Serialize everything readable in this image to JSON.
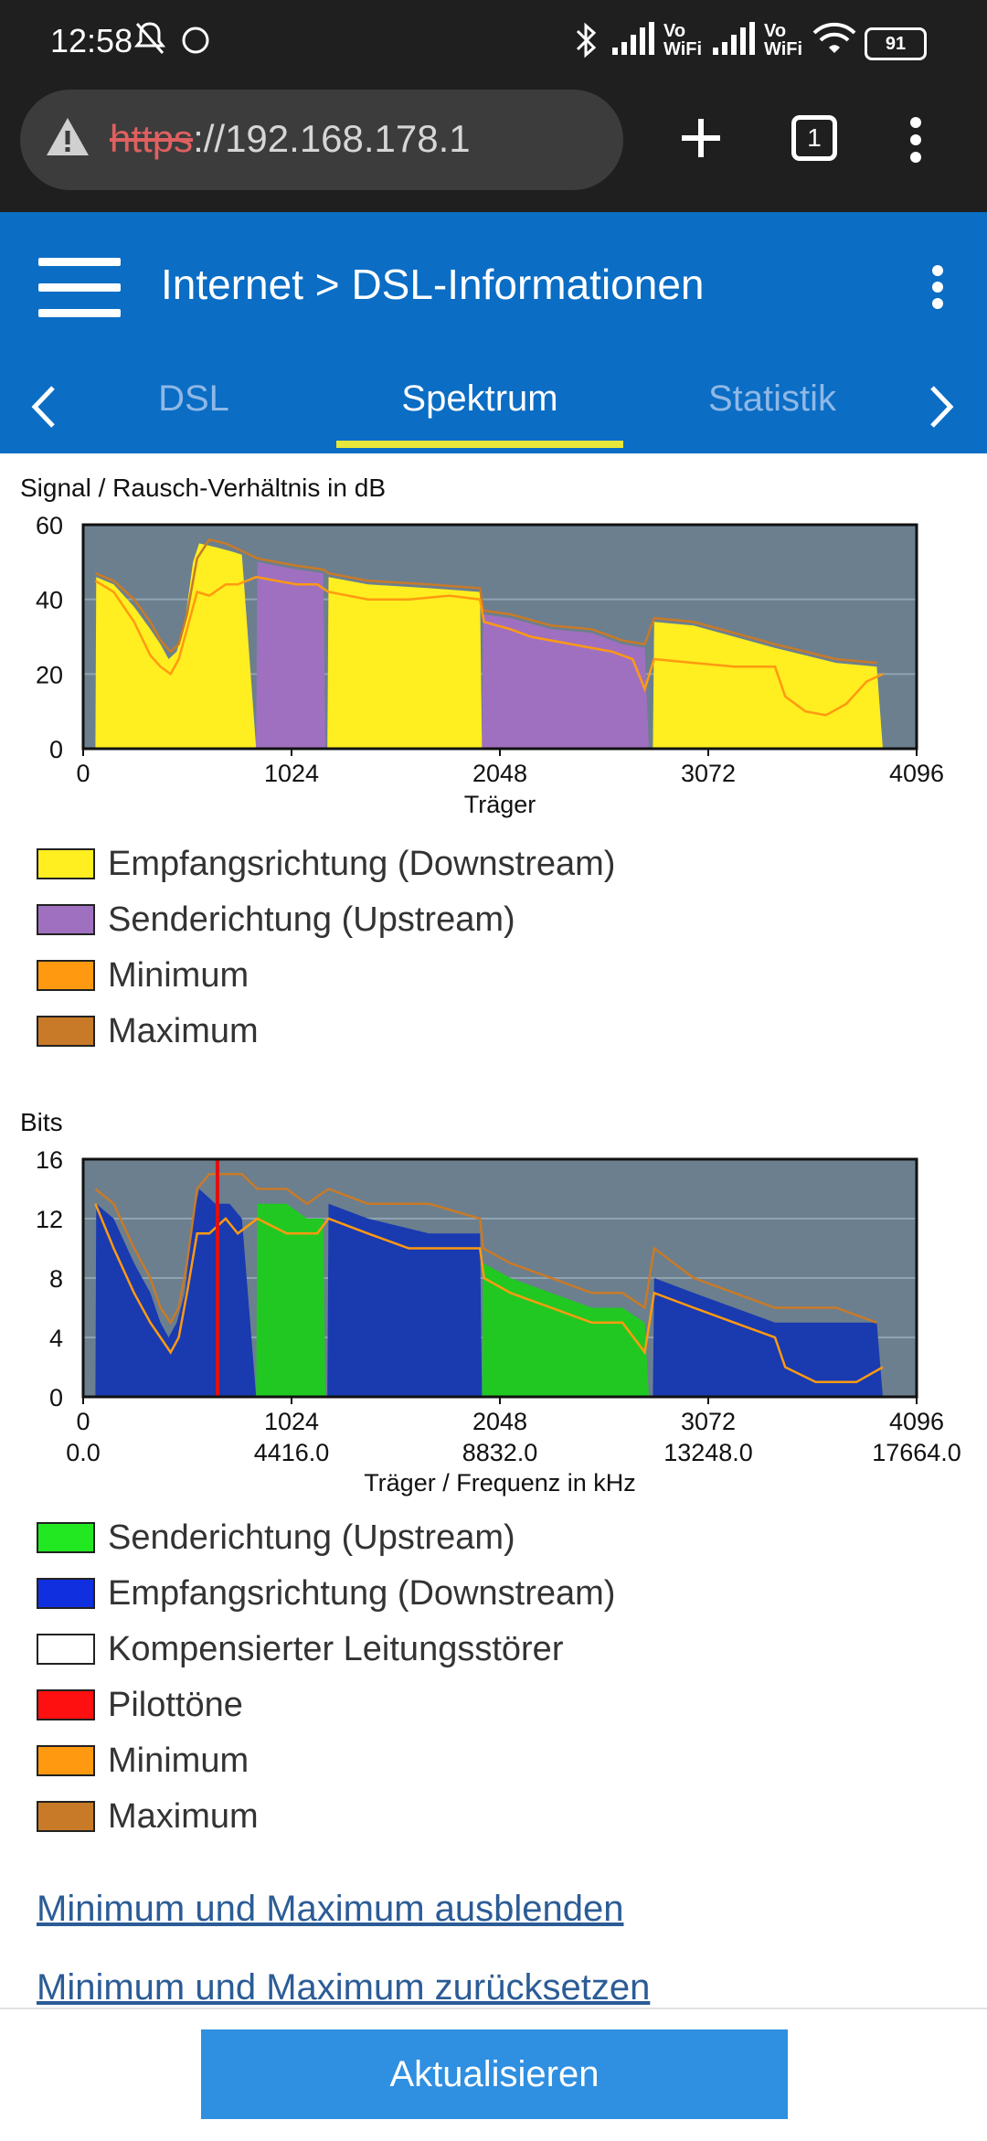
{
  "status_bar": {
    "time": "12:58",
    "battery": "91",
    "icons": [
      "mute-icon",
      "circle-icon",
      "bluetooth-icon",
      "signal-icon",
      "vowifi-icon",
      "signal-icon",
      "vowifi-icon",
      "wifi-icon",
      "battery-icon"
    ],
    "vowifi_top": "Vo",
    "vowifi_bottom": "WiFi"
  },
  "browser": {
    "url_scheme": "https",
    "url_rest": "://192.168.178.1",
    "tab_count": "1"
  },
  "header": {
    "crumb_parent": "Internet",
    "crumb_sep": ">",
    "crumb_current": "DSL-Informationen"
  },
  "tabs": [
    {
      "label": "DSL",
      "active": false
    },
    {
      "label": "Spektrum",
      "active": true
    },
    {
      "label": "Statistik",
      "active": false
    }
  ],
  "colors": {
    "accent": "#0b6dc4",
    "tab_indicator": "#e8e83a",
    "plot_bg": "#6b7f8f",
    "downstream_snr": "#ffee20",
    "upstream_snr": "#a070c0",
    "bits_upstream": "#22c822",
    "bits_downstream": "#1a3ab0",
    "pilot": "#e01010",
    "minimum": "#ff9a10",
    "maximum": "#c87a28",
    "link": "#2b5c96",
    "button": "#2f8fe0"
  },
  "chart_data": [
    {
      "type": "area",
      "title": "",
      "ylabel": "Signal / Rausch-Verhältnis in dB",
      "xlabel": "Träger",
      "xlim": [
        0,
        4096
      ],
      "ylim": [
        0,
        60
      ],
      "x_ticks": [
        0,
        1024,
        2048,
        3072,
        4096
      ],
      "y_ticks": [
        0,
        20,
        40,
        60
      ],
      "grid": true,
      "series": [
        {
          "name": "Empfangsrichtung (Downstream)",
          "role": "downstream",
          "points": [
            [
              0,
              0
            ],
            [
              60,
              0
            ],
            [
              64,
              46
            ],
            [
              150,
              44
            ],
            [
              250,
              38
            ],
            [
              330,
              32
            ],
            [
              380,
              28
            ],
            [
              420,
              24
            ],
            [
              460,
              26
            ],
            [
              500,
              34
            ],
            [
              540,
              50
            ],
            [
              570,
              55
            ],
            [
              650,
              54
            ],
            [
              720,
              53
            ],
            [
              780,
              52
            ],
            [
              850,
              0
            ],
            [
              1200,
              0
            ],
            [
              1206,
              46
            ],
            [
              1400,
              44
            ],
            [
              1700,
              43
            ],
            [
              1950,
              42
            ],
            [
              1960,
              0
            ],
            [
              2800,
              0
            ],
            [
              2806,
              34
            ],
            [
              3000,
              33
            ],
            [
              3200,
              30
            ],
            [
              3400,
              27
            ],
            [
              3550,
              25
            ],
            [
              3700,
              23
            ],
            [
              3900,
              22
            ],
            [
              3930,
              0
            ]
          ]
        },
        {
          "name": "Senderichtung (Upstream)",
          "role": "upstream",
          "points": [
            [
              0,
              0
            ],
            [
              850,
              0
            ],
            [
              856,
              50
            ],
            [
              950,
              49
            ],
            [
              1050,
              48
            ],
            [
              1180,
              47
            ],
            [
              1190,
              0
            ],
            [
              1960,
              0
            ],
            [
              1966,
              36
            ],
            [
              2100,
              35
            ],
            [
              2300,
              32
            ],
            [
              2500,
              31
            ],
            [
              2650,
              28
            ],
            [
              2760,
              27
            ],
            [
              2780,
              0
            ]
          ]
        }
      ],
      "minimum": [
        [
          60,
          45
        ],
        [
          150,
          42
        ],
        [
          250,
          34
        ],
        [
          330,
          25
        ],
        [
          380,
          22
        ],
        [
          430,
          20
        ],
        [
          470,
          24
        ],
        [
          510,
          32
        ],
        [
          560,
          42
        ],
        [
          620,
          41
        ],
        [
          700,
          44
        ],
        [
          760,
          44
        ],
        [
          850,
          46
        ],
        [
          950,
          45
        ],
        [
          1050,
          44
        ],
        [
          1150,
          44
        ],
        [
          1206,
          42
        ],
        [
          1400,
          40
        ],
        [
          1600,
          40
        ],
        [
          1800,
          41
        ],
        [
          1950,
          40
        ],
        [
          1970,
          34
        ],
        [
          2100,
          32
        ],
        [
          2200,
          30
        ],
        [
          2300,
          29
        ],
        [
          2400,
          28
        ],
        [
          2500,
          27
        ],
        [
          2600,
          26
        ],
        [
          2700,
          24
        ],
        [
          2760,
          16
        ],
        [
          2806,
          24
        ],
        [
          3000,
          23
        ],
        [
          3200,
          22
        ],
        [
          3400,
          22
        ],
        [
          3450,
          14
        ],
        [
          3550,
          10
        ],
        [
          3650,
          9
        ],
        [
          3750,
          12
        ],
        [
          3850,
          18
        ],
        [
          3930,
          20
        ]
      ],
      "maximum": [
        [
          60,
          47
        ],
        [
          150,
          45
        ],
        [
          250,
          40
        ],
        [
          330,
          34
        ],
        [
          380,
          29
        ],
        [
          430,
          26
        ],
        [
          470,
          28
        ],
        [
          510,
          36
        ],
        [
          560,
          51
        ],
        [
          620,
          56
        ],
        [
          700,
          55
        ],
        [
          780,
          53
        ],
        [
          856,
          51
        ],
        [
          950,
          50
        ],
        [
          1050,
          49
        ],
        [
          1180,
          48
        ],
        [
          1206,
          47
        ],
        [
          1400,
          45
        ],
        [
          1700,
          44
        ],
        [
          1950,
          43
        ],
        [
          1966,
          37
        ],
        [
          2100,
          36
        ],
        [
          2300,
          33
        ],
        [
          2500,
          32
        ],
        [
          2650,
          29
        ],
        [
          2760,
          28
        ],
        [
          2806,
          35
        ],
        [
          3000,
          34
        ],
        [
          3200,
          31
        ],
        [
          3400,
          28
        ],
        [
          3550,
          26
        ],
        [
          3700,
          24
        ],
        [
          3900,
          23
        ]
      ]
    },
    {
      "type": "area",
      "title": "",
      "ylabel": "Bits",
      "xlabel": "Träger / Frequenz in kHz",
      "xlim": [
        0,
        4096
      ],
      "ylim": [
        0,
        16
      ],
      "x_ticks": [
        0,
        1024,
        2048,
        3072,
        4096
      ],
      "x_tick_freqs": [
        "0.0",
        "4416.0",
        "8832.0",
        "13248.0",
        "17664.0"
      ],
      "y_ticks": [
        0,
        4,
        8,
        12,
        16
      ],
      "grid": true,
      "pilot_tone": 660,
      "series": [
        {
          "name": "Senderichtung (Upstream)",
          "role": "upstream",
          "points": [
            [
              0,
              0
            ],
            [
              850,
              0
            ],
            [
              856,
              13
            ],
            [
              1000,
              13
            ],
            [
              1100,
              12
            ],
            [
              1180,
              12
            ],
            [
              1190,
              0
            ],
            [
              1960,
              0
            ],
            [
              1966,
              9
            ],
            [
              2100,
              8
            ],
            [
              2300,
              7
            ],
            [
              2500,
              6
            ],
            [
              2650,
              6
            ],
            [
              2760,
              5
            ],
            [
              2780,
              0
            ]
          ]
        },
        {
          "name": "Empfangsrichtung (Downstream)",
          "role": "downstream",
          "points": [
            [
              0,
              0
            ],
            [
              60,
              0
            ],
            [
              64,
              13
            ],
            [
              150,
              12
            ],
            [
              250,
              9
            ],
            [
              330,
              7
            ],
            [
              380,
              5
            ],
            [
              420,
              4
            ],
            [
              460,
              5
            ],
            [
              500,
              7
            ],
            [
              540,
              12
            ],
            [
              570,
              14
            ],
            [
              650,
              13
            ],
            [
              720,
              13
            ],
            [
              780,
              12
            ],
            [
              850,
              0
            ],
            [
              1200,
              0
            ],
            [
              1206,
              13
            ],
            [
              1400,
              12
            ],
            [
              1700,
              11
            ],
            [
              1950,
              11
            ],
            [
              1960,
              0
            ],
            [
              2800,
              0
            ],
            [
              2806,
              8
            ],
            [
              3000,
              7
            ],
            [
              3200,
              6
            ],
            [
              3400,
              5
            ],
            [
              3550,
              5
            ],
            [
              3700,
              5
            ],
            [
              3900,
              5
            ],
            [
              3930,
              0
            ]
          ]
        },
        {
          "name": "Kompensierter Leitungsstörer",
          "role": "compensated",
          "points": []
        },
        {
          "name": "Pilottöne",
          "role": "pilot",
          "points": []
        }
      ],
      "minimum": [
        [
          60,
          13
        ],
        [
          150,
          10
        ],
        [
          250,
          7
        ],
        [
          330,
          5
        ],
        [
          380,
          4
        ],
        [
          430,
          3
        ],
        [
          470,
          4
        ],
        [
          510,
          7
        ],
        [
          560,
          11
        ],
        [
          620,
          11
        ],
        [
          700,
          12
        ],
        [
          760,
          11
        ],
        [
          856,
          12
        ],
        [
          1000,
          11
        ],
        [
          1150,
          11
        ],
        [
          1206,
          12
        ],
        [
          1400,
          11
        ],
        [
          1600,
          10
        ],
        [
          1800,
          10
        ],
        [
          1950,
          10
        ],
        [
          1970,
          8
        ],
        [
          2100,
          7
        ],
        [
          2300,
          6
        ],
        [
          2500,
          5
        ],
        [
          2650,
          5
        ],
        [
          2760,
          3
        ],
        [
          2806,
          7
        ],
        [
          3000,
          6
        ],
        [
          3200,
          5
        ],
        [
          3400,
          4
        ],
        [
          3450,
          2
        ],
        [
          3600,
          1
        ],
        [
          3800,
          1
        ],
        [
          3930,
          2
        ]
      ],
      "maximum": [
        [
          60,
          14
        ],
        [
          150,
          13
        ],
        [
          250,
          10
        ],
        [
          330,
          8
        ],
        [
          380,
          6
        ],
        [
          430,
          5
        ],
        [
          470,
          6
        ],
        [
          510,
          9
        ],
        [
          560,
          14
        ],
        [
          620,
          15
        ],
        [
          700,
          15
        ],
        [
          780,
          15
        ],
        [
          856,
          14
        ],
        [
          1000,
          14
        ],
        [
          1100,
          13
        ],
        [
          1206,
          14
        ],
        [
          1400,
          13
        ],
        [
          1700,
          13
        ],
        [
          1950,
          12
        ],
        [
          1966,
          10
        ],
        [
          2100,
          9
        ],
        [
          2300,
          8
        ],
        [
          2500,
          7
        ],
        [
          2650,
          7
        ],
        [
          2760,
          6
        ],
        [
          2806,
          10
        ],
        [
          3000,
          8
        ],
        [
          3200,
          7
        ],
        [
          3400,
          6
        ],
        [
          3550,
          6
        ],
        [
          3700,
          6
        ],
        [
          3900,
          5
        ]
      ]
    }
  ],
  "legend1": [
    {
      "label": "Empfangsrichtung (Downstream)",
      "color": "#ffee20"
    },
    {
      "label": "Senderichtung (Upstream)",
      "color": "#a070c0"
    },
    {
      "label": "Minimum",
      "color": "#ff9a10"
    },
    {
      "label": "Maximum",
      "color": "#c87a28"
    }
  ],
  "legend2": [
    {
      "label": "Senderichtung (Upstream)",
      "color": "#22e822"
    },
    {
      "label": "Empfangsrichtung (Downstream)",
      "color": "#1030e0"
    },
    {
      "label": "Kompensierter Leitungsstörer",
      "color": "#ffffff"
    },
    {
      "label": "Pilottöne",
      "color": "#ff1010"
    },
    {
      "label": "Minimum",
      "color": "#ff9a10"
    },
    {
      "label": "Maximum",
      "color": "#c87a28"
    }
  ],
  "links": {
    "hide_minmax": "Minimum und Maximum ausblenden",
    "reset_minmax": "Minimum und Maximum zurücksetzen"
  },
  "button": {
    "refresh": "Aktualisieren"
  }
}
